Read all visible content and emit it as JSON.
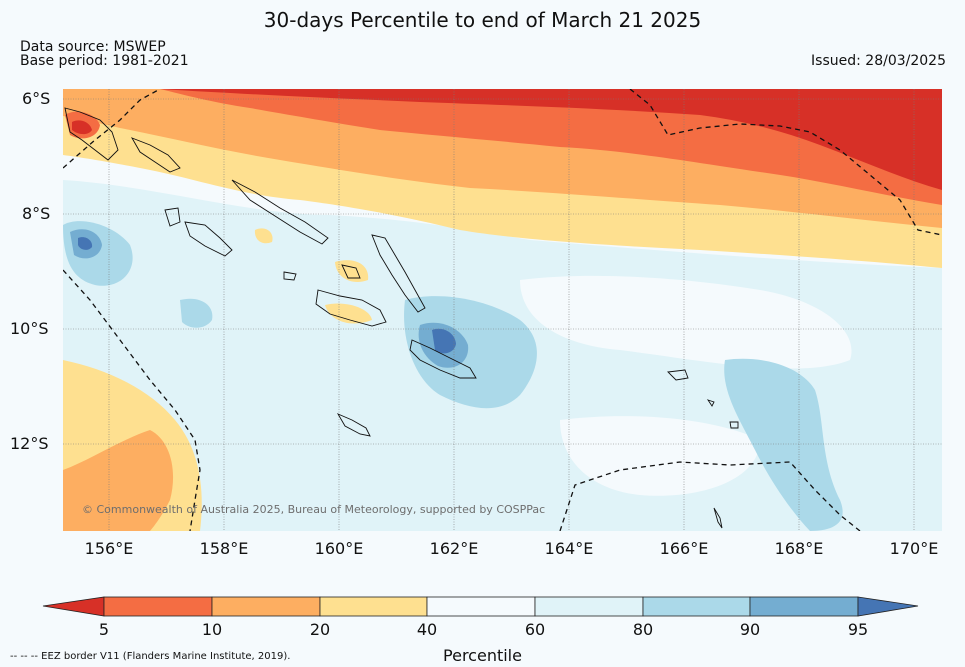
{
  "title": "30-days Percentile to end of March 21 2025",
  "data_source": "Data source: MSWEP",
  "base_period": "Base period: 1981-2021",
  "issued": "Issued: 28/03/2025",
  "copyright": "© Commonwealth of Australia 2025, Bureau of Meteorology, supported by COSPPac",
  "eez_note": "-- -- -- EEZ border V11 (Flanders Marine Institute, 2019).",
  "map": {
    "lat_labels": [
      "6°S",
      "8°S",
      "10°S",
      "12°S"
    ],
    "lon_labels": [
      "156°E",
      "158°E",
      "160°E",
      "162°E",
      "164°E",
      "166°E",
      "168°E",
      "170°E"
    ]
  },
  "colorbar": {
    "label": "Percentile",
    "ticks": [
      "5",
      "10",
      "20",
      "40",
      "60",
      "80",
      "90",
      "95"
    ],
    "colors": {
      "below5": "#d73027",
      "p5_10": "#f46d43",
      "p10_20": "#fdae61",
      "p20_40": "#fee090",
      "p40_60": "#f5fafd",
      "p60_80": "#e0f3f8",
      "p80_90": "#abd9e9",
      "p90_95": "#74add1",
      "above95": "#4575b4"
    }
  }
}
